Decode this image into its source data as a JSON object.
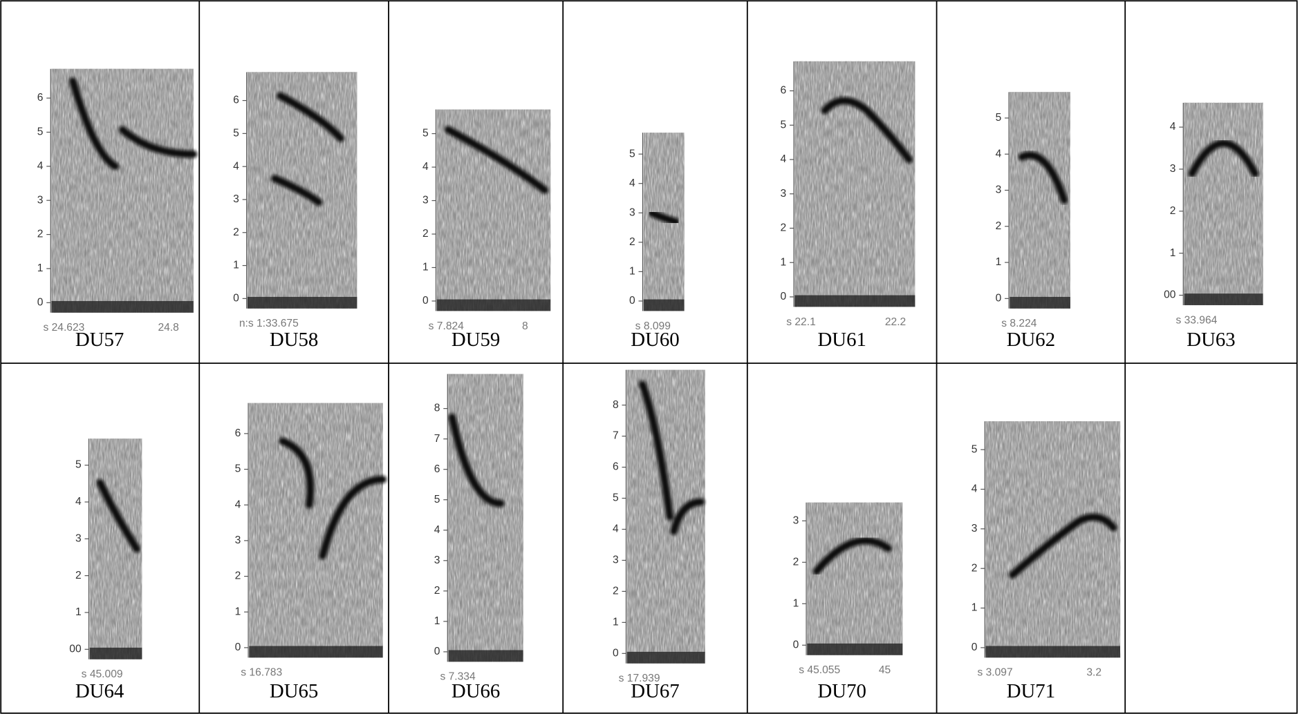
{
  "rows": [
    [
      {
        "label": "DU57",
        "y_ticks": [
          "6",
          "5",
          "4",
          "3",
          "2",
          "1",
          "0"
        ],
        "x_labels": [
          "s 24.623",
          "24.8"
        ]
      },
      {
        "label": "DU58",
        "y_ticks": [
          "6",
          "5",
          "4",
          "3",
          "2",
          "1",
          "0"
        ],
        "x_labels": [
          "n:s 1:33.675"
        ]
      },
      {
        "label": "DU59",
        "y_ticks": [
          "5",
          "4",
          "3",
          "2",
          "1",
          "0"
        ],
        "x_labels": [
          "s 7.824",
          "8"
        ]
      },
      {
        "label": "DU60",
        "y_ticks": [
          "5",
          "4",
          "3",
          "2",
          "1",
          "0"
        ],
        "x_labels": [
          "s 8.099"
        ]
      },
      {
        "label": "DU61",
        "y_ticks": [
          "6",
          "5",
          "4",
          "3",
          "2",
          "1",
          "0"
        ],
        "x_labels": [
          "s 22.1",
          "22.2"
        ]
      },
      {
        "label": "DU62",
        "y_ticks": [
          "5",
          "4",
          "3",
          "2",
          "1",
          "0"
        ],
        "x_labels": [
          "s 8.224"
        ]
      },
      {
        "label": "DU63",
        "y_ticks": [
          "4",
          "3",
          "2",
          "1",
          "00"
        ],
        "x_labels": [
          "s 33.964"
        ]
      }
    ],
    [
      {
        "label": "DU64",
        "y_ticks": [
          "5",
          "4",
          "3",
          "2",
          "1",
          "00"
        ],
        "x_labels": [
          "s 45.009"
        ]
      },
      {
        "label": "DU65",
        "y_ticks": [
          "6",
          "5",
          "4",
          "3",
          "2",
          "1",
          "0"
        ],
        "x_labels": [
          "s 16.783"
        ]
      },
      {
        "label": "DU66",
        "y_ticks": [
          "8",
          "7",
          "6",
          "5",
          "4",
          "3",
          "2",
          "1",
          "0"
        ],
        "x_labels": [
          "s 7.334"
        ]
      },
      {
        "label": "DU67",
        "y_ticks": [
          "8",
          "7",
          "6",
          "5",
          "4",
          "3",
          "2",
          "1",
          "0"
        ],
        "x_labels": [
          "s 17.939"
        ]
      },
      {
        "label": "DU70",
        "y_ticks": [
          "3",
          "2",
          "1",
          "0"
        ],
        "x_labels": [
          "s 45.055",
          "45"
        ]
      },
      {
        "label": "DU71",
        "y_ticks": [
          "5",
          "4",
          "3",
          "2",
          "1",
          "0"
        ],
        "x_labels": [
          "s 3.097",
          "3.2"
        ]
      }
    ]
  ]
}
